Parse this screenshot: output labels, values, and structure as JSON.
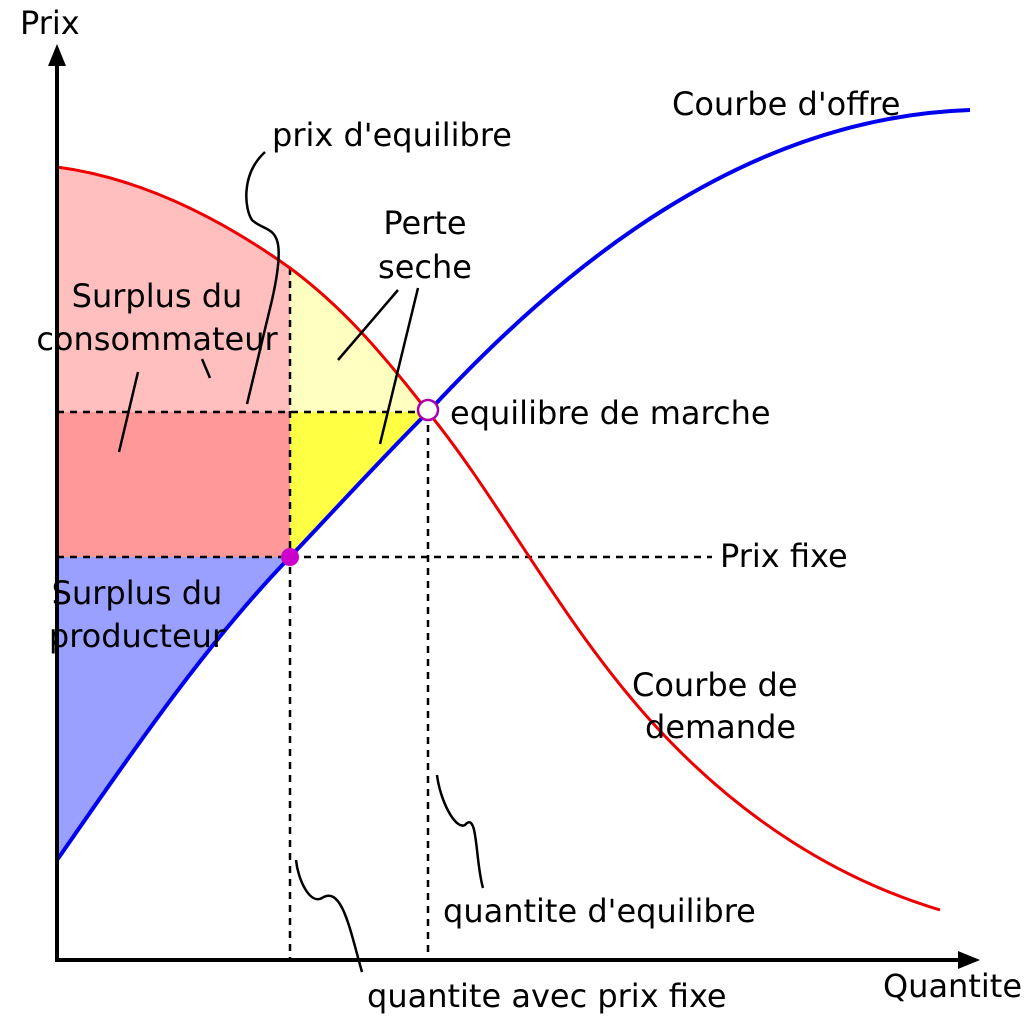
{
  "axes": {
    "y_label": "Prix",
    "x_label": "Quantite"
  },
  "curves": {
    "supply_label": "Courbe d'offre",
    "supply_color": "#0000ee",
    "demand_label_line1": "Courbe de",
    "demand_label_line2": "demande",
    "demand_color": "#ee0000"
  },
  "regions": {
    "consumer_surplus_line1": "Surplus du",
    "consumer_surplus_line2": "consommateur",
    "consumer_surplus_color": "#ffbfbf",
    "transfer_color": "#ff9999",
    "producer_surplus_line1": "Surplus du",
    "producer_surplus_line2": "producteur",
    "producer_surplus_color": "#99a0ff",
    "deadweight_loss_line1": "Perte",
    "deadweight_loss_line2": "seche",
    "deadweight_loss_light_color": "#ffffc0",
    "deadweight_loss_dark_color": "#ffff44"
  },
  "annotations": {
    "equilibrium_price": "prix d'equilibre",
    "market_equilibrium": "equilibre de marche",
    "fixed_price": "Prix fixe",
    "equilibrium_quantity": "quantite d'equilibre",
    "fixed_price_quantity": "quantite avec prix fixe"
  },
  "points": {
    "equilibrium_color": "#aa00aa",
    "fixed_price_point_color": "#cc00cc"
  }
}
